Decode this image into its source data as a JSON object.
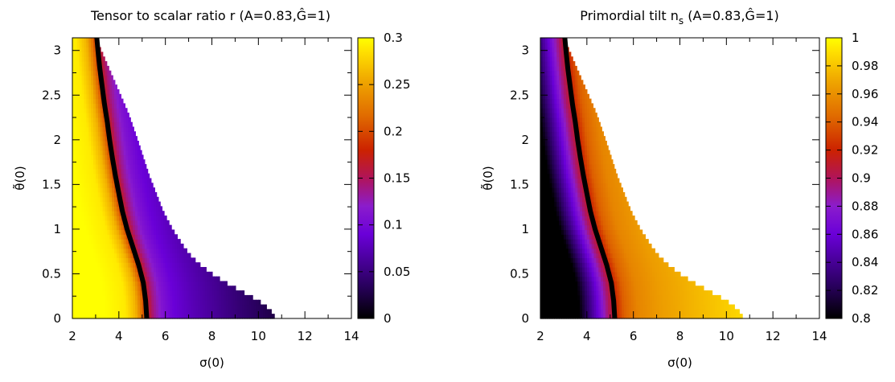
{
  "chart_data": [
    {
      "type": "heatmap",
      "title": "Tensor to scalar ratio r (A=0.83,Ĝ=1)",
      "xlabel": "σ(0)",
      "ylabel": "θ̃(0)",
      "xlim": [
        2,
        14
      ],
      "ylim": [
        0,
        3.14159
      ],
      "x_ticks": [
        "2",
        "4",
        "6",
        "8",
        "10",
        "12",
        "14"
      ],
      "y_ticks": [
        "0",
        "0.5",
        "1",
        "1.5",
        "2",
        "2.5",
        "3"
      ],
      "colorbar": {
        "range": [
          0,
          0.3
        ],
        "ticks": [
          "0",
          "0.05",
          "0.1",
          "0.15",
          "0.2",
          "0.25",
          "0.3"
        ],
        "palette": [
          "#000000",
          "#2a0060",
          "#6a00d8",
          "#8b1ccc",
          "#b0145a",
          "#cc2200",
          "#e06a00",
          "#f0a800",
          "#ffe000",
          "#ffff00"
        ]
      },
      "domain_edge": {
        "theta": [
          0,
          0.1,
          0.2,
          0.3,
          0.4,
          0.5,
          0.6,
          0.7,
          0.8,
          1.0,
          1.2,
          1.4,
          1.6,
          1.8,
          2.0,
          2.3,
          2.6,
          2.9,
          3.14159
        ],
        "sigma_max": [
          10.75,
          10.5,
          10.0,
          9.3,
          8.6,
          8.0,
          7.5,
          7.1,
          6.8,
          6.3,
          5.9,
          5.6,
          5.3,
          5.05,
          4.8,
          4.4,
          3.9,
          3.4,
          3.0
        ]
      },
      "black_curve": {
        "theta": [
          0,
          0.2,
          0.4,
          0.6,
          0.8,
          1.0,
          1.2,
          1.4,
          1.6,
          1.8,
          2.0,
          2.2,
          2.4,
          2.6,
          2.8,
          3.0,
          3.14159
        ],
        "sigma": [
          5.2,
          5.15,
          5.05,
          4.85,
          4.6,
          4.35,
          4.15,
          4.0,
          3.85,
          3.72,
          3.6,
          3.5,
          3.38,
          3.28,
          3.18,
          3.1,
          3.05
        ]
      },
      "value_profile": {
        "distance_from_curve": [
          -3.0,
          -1.8,
          -0.9,
          -0.45,
          -0.2,
          0,
          0.3,
          0.7,
          1.2,
          2.0,
          3.0,
          4.0,
          6.0
        ],
        "value": [
          0.3,
          0.3,
          0.29,
          0.26,
          0.22,
          0.18,
          0.14,
          0.11,
          0.09,
          0.075,
          0.06,
          0.045,
          0.02
        ]
      }
    },
    {
      "type": "heatmap",
      "title": "Primordial tilt n",
      "title_sub": "s",
      "title_tail": " (A=0.83,Ĝ=1)",
      "xlabel": "σ(0)",
      "ylabel": "θ̃(0)",
      "xlim": [
        2,
        14
      ],
      "ylim": [
        0,
        3.14159
      ],
      "x_ticks": [
        "2",
        "4",
        "6",
        "8",
        "10",
        "12",
        "14"
      ],
      "y_ticks": [
        "0",
        "0.5",
        "1",
        "1.5",
        "2",
        "2.5",
        "3"
      ],
      "colorbar": {
        "range": [
          0.8,
          1.0
        ],
        "ticks": [
          "0.8",
          "0.82",
          "0.84",
          "0.86",
          "0.88",
          "0.9",
          "0.92",
          "0.94",
          "0.96",
          "0.98",
          "1"
        ],
        "palette": [
          "#000000",
          "#2a0060",
          "#6a00d8",
          "#8b1ccc",
          "#b0145a",
          "#cc2200",
          "#e06a00",
          "#f0a800",
          "#ffe000",
          "#ffff00"
        ]
      },
      "domain_edge": {
        "theta": [
          0,
          0.1,
          0.2,
          0.3,
          0.4,
          0.5,
          0.6,
          0.7,
          0.8,
          1.0,
          1.2,
          1.4,
          1.6,
          1.8,
          2.0,
          2.3,
          2.6,
          2.9,
          3.14159
        ],
        "sigma_max": [
          10.75,
          10.5,
          10.0,
          9.3,
          8.6,
          8.0,
          7.5,
          7.1,
          6.8,
          6.3,
          5.9,
          5.6,
          5.3,
          5.05,
          4.8,
          4.4,
          3.9,
          3.4,
          3.0
        ]
      },
      "black_curve": {
        "theta": [
          0,
          0.2,
          0.4,
          0.6,
          0.8,
          1.0,
          1.2,
          1.4,
          1.6,
          1.8,
          2.0,
          2.2,
          2.4,
          2.6,
          2.8,
          3.0,
          3.14159
        ],
        "sigma": [
          5.2,
          5.15,
          5.05,
          4.85,
          4.6,
          4.35,
          4.15,
          4.0,
          3.85,
          3.72,
          3.6,
          3.5,
          3.38,
          3.28,
          3.18,
          3.1,
          3.05
        ]
      },
      "value_profile": {
        "distance_from_curve": [
          -3.0,
          -2.0,
          -1.5,
          -1.1,
          -0.7,
          -0.35,
          0,
          0.4,
          1.0,
          2.0,
          3.5,
          6.0
        ],
        "value": [
          0.8,
          0.8,
          0.8,
          0.83,
          0.86,
          0.89,
          0.915,
          0.94,
          0.955,
          0.965,
          0.975,
          0.99
        ]
      }
    }
  ]
}
